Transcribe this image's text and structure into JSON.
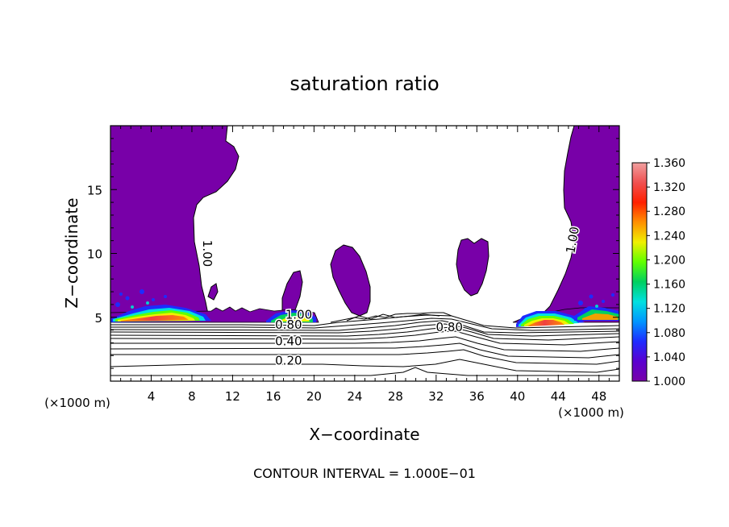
{
  "chart_data": {
    "type": "contour",
    "title": "saturation ratio",
    "xlabel": "X−coordinate",
    "ylabel": "Z−coordinate",
    "x_unit_label": "(×1000 m)",
    "z_unit_label": "(×1000 m)",
    "xlim": [
      0,
      50
    ],
    "ylim": [
      0,
      20
    ],
    "x_ticks": [
      "4",
      "8",
      "12",
      "16",
      "20",
      "24",
      "28",
      "32",
      "36",
      "40",
      "44",
      "48"
    ],
    "x_tick_values": [
      4,
      8,
      12,
      16,
      20,
      24,
      28,
      32,
      36,
      40,
      44,
      48
    ],
    "y_ticks": [
      "5",
      "10",
      "15"
    ],
    "y_tick_values": [
      5,
      10,
      15
    ],
    "colorbar": {
      "labels": [
        "1.360",
        "1.320",
        "1.280",
        "1.240",
        "1.200",
        "1.160",
        "1.120",
        "1.080",
        "1.040",
        "1.000"
      ],
      "values": [
        1.36,
        1.32,
        1.28,
        1.24,
        1.2,
        1.16,
        1.12,
        1.08,
        1.04,
        1.0
      ],
      "colors": [
        "#7800a8",
        "#5a00d0",
        "#1e2bff",
        "#0096ff",
        "#00e0e0",
        "#00d060",
        "#60ff00",
        "#f0f000",
        "#ff9000",
        "#ff2000",
        "#f05050",
        "#f0a0a0"
      ]
    },
    "contour_labels": [
      {
        "text": "0.20",
        "x": 17.5,
        "z": 1.3
      },
      {
        "text": "0.40",
        "x": 17.5,
        "z": 2.8
      },
      {
        "text": "0.80",
        "x": 17.5,
        "z": 4.1
      },
      {
        "text": "0.80",
        "x": 33.3,
        "z": 3.9
      },
      {
        "text": "1.00",
        "x": 18.5,
        "z": 4.9
      },
      {
        "text": "1.00",
        "x": 9.1,
        "z": 10.0
      },
      {
        "text": "1.00",
        "x": 45.8,
        "z": 11.0
      }
    ],
    "contour_interval_text": "CONTOUR INTERVAL = 1.000E−01"
  }
}
